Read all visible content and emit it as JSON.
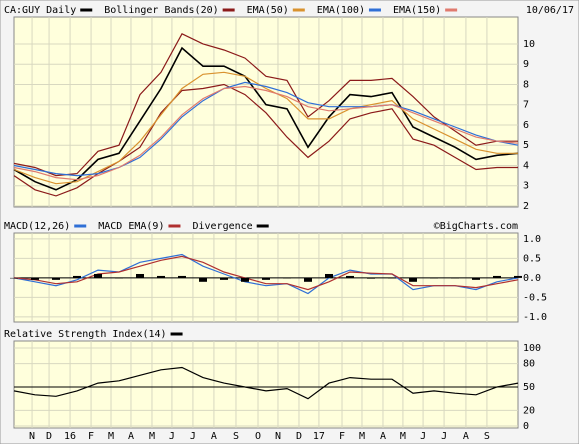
{
  "date": "10/06/17",
  "x_axis": {
    "xlim": [
      0,
      24
    ],
    "xticks": [
      {
        "value": 0.86,
        "label": "N"
      },
      {
        "value": 1.67,
        "label": "D"
      },
      {
        "value": 2.67,
        "label": "16"
      },
      {
        "value": 3.67,
        "label": "F"
      },
      {
        "value": 4.62,
        "label": "M"
      },
      {
        "value": 5.57,
        "label": "A"
      },
      {
        "value": 6.57,
        "label": "M"
      },
      {
        "value": 7.52,
        "label": "J"
      },
      {
        "value": 8.52,
        "label": "J"
      },
      {
        "value": 9.52,
        "label": "A"
      },
      {
        "value": 10.57,
        "label": "S"
      },
      {
        "value": 11.62,
        "label": "O"
      },
      {
        "value": 12.57,
        "label": "N"
      },
      {
        "value": 13.57,
        "label": "D"
      },
      {
        "value": 14.52,
        "label": "17"
      },
      {
        "value": 15.62,
        "label": "F"
      },
      {
        "value": 16.57,
        "label": "M"
      },
      {
        "value": 17.57,
        "label": "A"
      },
      {
        "value": 18.52,
        "label": "M"
      },
      {
        "value": 19.48,
        "label": "J"
      },
      {
        "value": 20.48,
        "label": "J"
      },
      {
        "value": 21.52,
        "label": "A"
      },
      {
        "value": 22.52,
        "label": "S"
      }
    ]
  },
  "chart_data": [
    {
      "type": "line",
      "ylim": [
        1.95,
        11.33
      ],
      "yticks": [
        2,
        3,
        4,
        5,
        6,
        7,
        8,
        9,
        10
      ],
      "grid": true,
      "series": [
        {
          "name": "CA:GUY Daily",
          "color": "#000000",
          "values": [
            3.8,
            3.2,
            2.8,
            3.3,
            4.3,
            4.6,
            6.2,
            7.8,
            9.8,
            8.9,
            8.9,
            8.4,
            7.0,
            6.8,
            4.9,
            6.4,
            7.5,
            7.4,
            7.6,
            5.9,
            5.4,
            4.9,
            4.3,
            4.5,
            4.6
          ]
        },
        {
          "name": "Bollinger Bands(20)",
          "color": "#8b1a1a",
          "band": true,
          "upper": [
            4.1,
            3.9,
            3.5,
            3.6,
            4.7,
            5.0,
            7.5,
            8.6,
            10.5,
            10.0,
            9.7,
            9.3,
            8.4,
            8.2,
            6.4,
            7.2,
            8.2,
            8.2,
            8.3,
            7.4,
            6.4,
            5.7,
            5.0,
            5.2,
            5.2
          ],
          "lower": [
            3.5,
            2.8,
            2.5,
            2.9,
            3.6,
            4.2,
            4.9,
            6.6,
            7.7,
            7.8,
            8.0,
            7.5,
            6.6,
            5.4,
            4.4,
            5.2,
            6.3,
            6.6,
            6.8,
            5.3,
            5.0,
            4.4,
            3.8,
            3.9,
            3.9
          ]
        },
        {
          "name": "EMA(50)",
          "color": "#d9922e",
          "values": [
            3.8,
            3.4,
            3.1,
            3.2,
            3.7,
            4.2,
            5.2,
            6.5,
            7.8,
            8.5,
            8.6,
            8.4,
            7.8,
            7.3,
            6.3,
            6.3,
            6.8,
            7.0,
            7.2,
            6.3,
            5.8,
            5.3,
            4.8,
            4.6,
            4.6
          ]
        },
        {
          "name": "EMA(100)",
          "color": "#2f6fd6",
          "values": [
            4.0,
            3.8,
            3.6,
            3.5,
            3.6,
            3.9,
            4.4,
            5.3,
            6.4,
            7.2,
            7.8,
            8.1,
            7.9,
            7.6,
            7.1,
            6.9,
            6.9,
            6.9,
            7.0,
            6.7,
            6.3,
            5.9,
            5.5,
            5.2,
            5.0
          ]
        },
        {
          "name": "EMA(150)",
          "color": "#e07a6e",
          "values": [
            3.9,
            3.7,
            3.4,
            3.3,
            3.5,
            3.9,
            4.5,
            5.4,
            6.5,
            7.3,
            7.8,
            7.9,
            7.7,
            7.4,
            6.9,
            6.7,
            6.8,
            6.9,
            7.0,
            6.6,
            6.2,
            5.8,
            5.4,
            5.2,
            5.1
          ]
        }
      ]
    },
    {
      "type": "line",
      "source": "©BigCharts.com",
      "ylim": [
        -1.13,
        1.15
      ],
      "grid": true,
      "yticks": [
        {
          "value": 1.0,
          "label": "1.0"
        },
        0.5,
        {
          "value": 0.0,
          "label": "0.0"
        },
        -0.5,
        {
          "value": -1.0,
          "label": "-1.0"
        }
      ],
      "series": [
        {
          "name": "MACD(12,26)",
          "color": "#2f6fd6",
          "values": [
            0.0,
            -0.1,
            -0.2,
            -0.05,
            0.2,
            0.15,
            0.4,
            0.5,
            0.6,
            0.3,
            0.1,
            -0.1,
            -0.2,
            -0.15,
            -0.4,
            0.0,
            0.2,
            0.1,
            0.1,
            -0.3,
            -0.2,
            -0.2,
            -0.3,
            -0.1,
            0.0
          ]
        },
        {
          "name": "MACD EMA(9)",
          "color": "#b03030",
          "values": [
            0.0,
            -0.05,
            -0.15,
            -0.1,
            0.1,
            0.15,
            0.3,
            0.45,
            0.55,
            0.4,
            0.15,
            0.0,
            -0.15,
            -0.15,
            -0.3,
            -0.1,
            0.15,
            0.12,
            0.1,
            -0.2,
            -0.2,
            -0.2,
            -0.25,
            -0.15,
            -0.05
          ]
        },
        {
          "name": "Divergence",
          "color": "#000000",
          "type": "bar",
          "values": [
            0.0,
            -0.05,
            -0.05,
            0.05,
            0.1,
            0.0,
            0.1,
            0.05,
            0.05,
            -0.1,
            -0.05,
            -0.1,
            -0.05,
            0.0,
            -0.1,
            0.1,
            0.05,
            -0.02,
            0.0,
            -0.1,
            0.0,
            0.0,
            -0.05,
            0.05,
            0.05
          ]
        }
      ]
    },
    {
      "type": "line",
      "ylim": [
        -2.6,
        109
      ],
      "yticks": [
        0,
        20,
        50,
        80,
        100
      ],
      "grid": true,
      "ref_line": 50,
      "series": [
        {
          "name": "Relative Strength Index(14)",
          "color": "#000000",
          "values": [
            45,
            40,
            38,
            45,
            55,
            58,
            65,
            72,
            75,
            62,
            55,
            50,
            45,
            48,
            35,
            55,
            62,
            60,
            60,
            42,
            45,
            42,
            40,
            50,
            55
          ]
        }
      ]
    }
  ]
}
